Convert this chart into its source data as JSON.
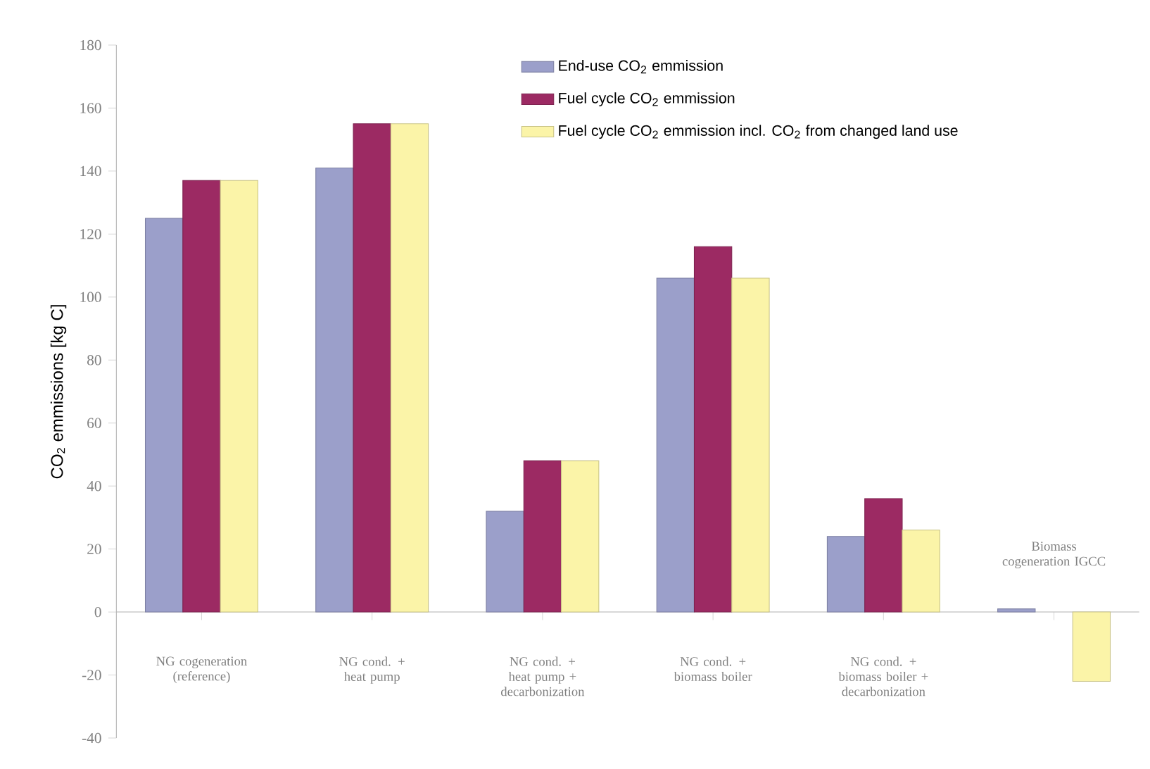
{
  "chart_data": {
    "type": "bar",
    "ylabel": "CO$_{2}$ emmissions [kg C]",
    "categories": [
      "NG cogeneration (reference)",
      "NG cond. + heat pump",
      "NG cond. + heat pump + decarbonization",
      "NG cond. + biomass boiler",
      "NG cond. + biomass boiler + decarbonization",
      "Biomass cogeneration IGCC"
    ],
    "series": [
      {
        "name": "End-use CO$_{2}$ emmission",
        "color": "#9b9fca",
        "values": [
          125,
          141,
          32,
          106,
          24,
          1
        ]
      },
      {
        "name": "Fuel cycle CO$_{2}$ emmission",
        "color": "#9c2a63",
        "values": [
          137,
          155,
          48,
          116,
          36,
          null
        ]
      },
      {
        "name": "Fuel cycle CO$_{2}$ emmission incl. CO$_{2}$ from changed land use",
        "color": "#fbf4a8",
        "values": [
          137,
          155,
          48,
          106,
          26,
          -22
        ]
      }
    ],
    "ylim": [
      -40,
      180
    ],
    "yticks": [
      -40,
      -20,
      0,
      20,
      40,
      60,
      80,
      100,
      120,
      140,
      160,
      180
    ],
    "legend": "top right"
  }
}
